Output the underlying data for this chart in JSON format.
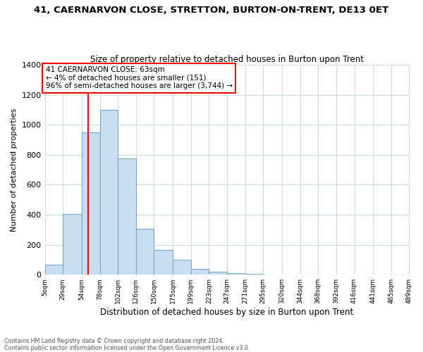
{
  "title": "41, CAERNARVON CLOSE, STRETTON, BURTON-ON-TRENT, DE13 0ET",
  "subtitle": "Size of property relative to detached houses in Burton upon Trent",
  "xlabel": "Distribution of detached houses by size in Burton upon Trent",
  "ylabel": "Number of detached properties",
  "bar_color": "#c8ddf0",
  "bar_edge_color": "#7aaaca",
  "vline_x": 63,
  "vline_color": "red",
  "annotation_text": "41 CAERNARVON CLOSE: 63sqm\n← 4% of detached houses are smaller (151)\n96% of semi-detached houses are larger (3,744) →",
  "annotation_box_color": "white",
  "annotation_box_edge": "red",
  "bins": [
    5,
    29,
    54,
    78,
    102,
    126,
    150,
    175,
    199,
    223,
    247,
    271,
    295,
    320,
    344,
    368,
    392,
    416,
    441,
    465,
    489
  ],
  "bar_heights": [
    65,
    405,
    950,
    1100,
    775,
    305,
    165,
    100,
    38,
    18,
    10,
    5,
    0,
    0,
    0,
    0,
    0,
    0,
    0,
    0
  ],
  "xtick_labels": [
    "5sqm",
    "29sqm",
    "54sqm",
    "78sqm",
    "102sqm",
    "126sqm",
    "150sqm",
    "175sqm",
    "199sqm",
    "223sqm",
    "247sqm",
    "271sqm",
    "295sqm",
    "320sqm",
    "344sqm",
    "368sqm",
    "392sqm",
    "416sqm",
    "441sqm",
    "465sqm",
    "489sqm"
  ],
  "ylim": [
    0,
    1400
  ],
  "yticks": [
    0,
    200,
    400,
    600,
    800,
    1000,
    1200,
    1400
  ],
  "footer_line1": "Contains HM Land Registry data © Crown copyright and database right 2024.",
  "footer_line2": "Contains public sector information licensed under the Open Government Licence v3.0.",
  "background_color": "#ffffff",
  "grid_color": "#d0dce8"
}
